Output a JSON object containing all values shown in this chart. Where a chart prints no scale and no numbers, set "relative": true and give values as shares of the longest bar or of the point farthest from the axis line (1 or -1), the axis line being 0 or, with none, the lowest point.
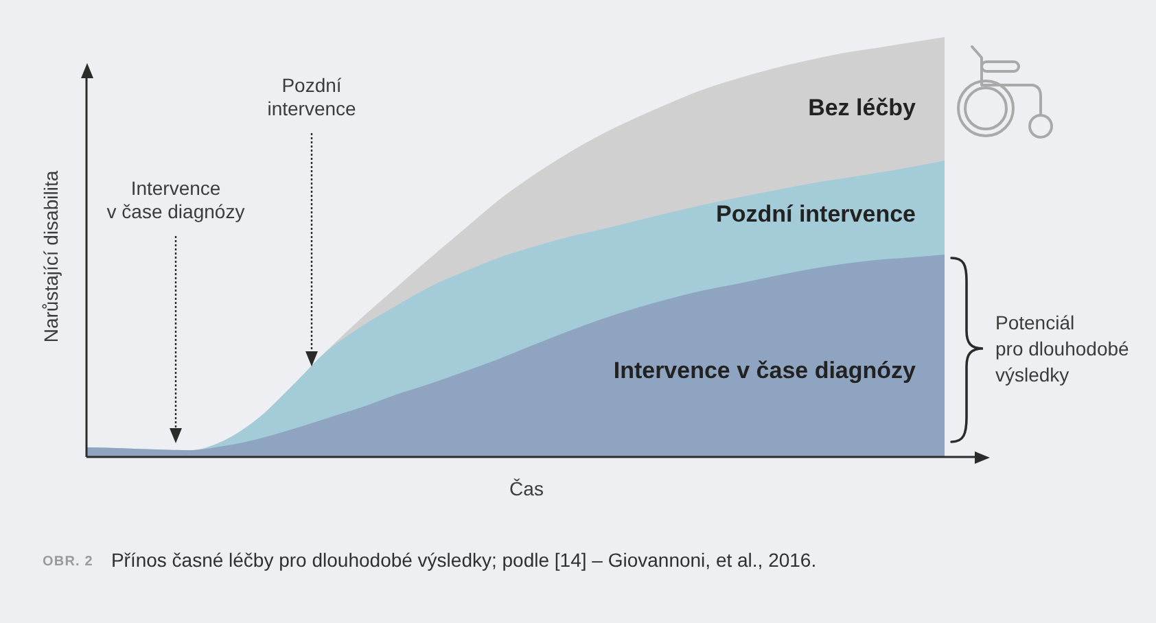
{
  "chart_data": {
    "type": "area",
    "relative": true,
    "categories": [
      null,
      null,
      null,
      null,
      null,
      null,
      null,
      null,
      null,
      null,
      null,
      null,
      null,
      null,
      null,
      null,
      null,
      null,
      null,
      null,
      null,
      null,
      null,
      null,
      null,
      null
    ],
    "series": [
      {
        "name": "Bez léčby",
        "color": "#d0d0d0",
        "values": [
          0.023,
          0.021,
          0.018,
          0.016,
          0.039,
          0.092,
          0.17,
          0.253,
          0.33,
          0.402,
          0.473,
          0.542,
          0.611,
          0.67,
          0.722,
          0.768,
          0.807,
          0.843,
          0.876,
          0.902,
          0.925,
          0.944,
          0.961,
          0.974,
          0.987,
          1
        ]
      },
      {
        "name": "Pozdní intervence",
        "color": "#a3cbd8",
        "values": [
          0.023,
          0.021,
          0.018,
          0.016,
          0.039,
          0.092,
          0.17,
          0.252,
          0.31,
          0.359,
          0.405,
          0.441,
          0.474,
          0.5,
          0.523,
          0.542,
          0.562,
          0.582,
          0.601,
          0.618,
          0.634,
          0.65,
          0.663,
          0.676,
          0.69,
          0.706
        ]
      },
      {
        "name": "Intervence v čase diagnózy",
        "color": "#8ea4c0",
        "values": [
          0.023,
          0.021,
          0.018,
          0.016,
          0.026,
          0.043,
          0.066,
          0.092,
          0.118,
          0.148,
          0.174,
          0.203,
          0.233,
          0.266,
          0.298,
          0.328,
          0.354,
          0.377,
          0.397,
          0.413,
          0.43,
          0.446,
          0.459,
          0.469,
          0.475,
          0.482
        ]
      }
    ],
    "xlabel": "Čas",
    "ylabel": "Narůstající disabilita",
    "annotations": [
      "Intervence\nv čase diagnózy",
      "Pozdní\nintervence",
      "Potenciál\npro dlouhodobé\nvýsledky",
      "OBR. 2",
      "Přínos časné léčby pro dlouhodobé výsledky; podle [14] – Giovannoni, et al., 2016."
    ]
  }
}
